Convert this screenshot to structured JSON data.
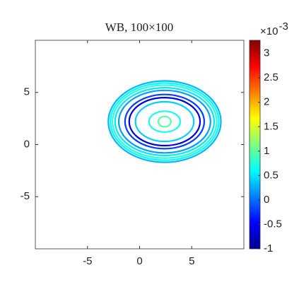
{
  "chart_data": {
    "type": "contour",
    "title": "WB, 100×100",
    "xlim": [
      -10,
      10
    ],
    "ylim": [
      -10,
      10
    ],
    "xticks": [
      -5,
      0,
      5
    ],
    "yticks": [
      -5,
      0,
      5
    ],
    "colorbar": {
      "clim": [
        -1,
        3.27
      ],
      "ticks": [
        -1,
        -0.5,
        0,
        0.5,
        1,
        1.5,
        2,
        2.5,
        3
      ],
      "multiplier": "×10",
      "exponent": "-3",
      "colormap": [
        {
          "offset": 0,
          "color": "#00008f"
        },
        {
          "offset": 0.125,
          "color": "#0000ff"
        },
        {
          "offset": 0.375,
          "color": "#00ffff"
        },
        {
          "offset": 0.625,
          "color": "#ffff00"
        },
        {
          "offset": 0.875,
          "color": "#ff0000"
        },
        {
          "offset": 1,
          "color": "#800000"
        }
      ]
    },
    "contours": [
      {
        "cx": 2.4,
        "cy": 2.2,
        "rx": 5.4,
        "ry": 3.9,
        "level": 0.3
      },
      {
        "cx": 2.4,
        "cy": 2.2,
        "rx": 5.2,
        "ry": 3.7,
        "level": 0.6
      },
      {
        "cx": 2.4,
        "cy": 2.2,
        "rx": 5.0,
        "ry": 3.5,
        "level": 0.8
      },
      {
        "cx": 2.4,
        "cy": 2.2,
        "rx": 4.75,
        "ry": 3.25,
        "level": 0.5
      },
      {
        "cx": 2.4,
        "cy": 2.2,
        "rx": 4.4,
        "ry": 3.0,
        "level": 0.2
      },
      {
        "cx": 2.4,
        "cy": 2.2,
        "rx": 3.8,
        "ry": 2.6,
        "level": -0.2
      },
      {
        "cx": 2.4,
        "cy": 2.2,
        "rx": 3.4,
        "ry": 2.3,
        "level": -0.6
      },
      {
        "cx": 2.4,
        "cy": 2.2,
        "rx": 2.8,
        "ry": 1.9,
        "level": 0.4
      },
      {
        "cx": 2.4,
        "cy": 2.2,
        "rx": 1.5,
        "ry": 1.0,
        "level": 0.7
      },
      {
        "cx": 2.4,
        "cy": 2.2,
        "rx": 0.6,
        "ry": 0.5,
        "level": 1.0
      }
    ]
  }
}
